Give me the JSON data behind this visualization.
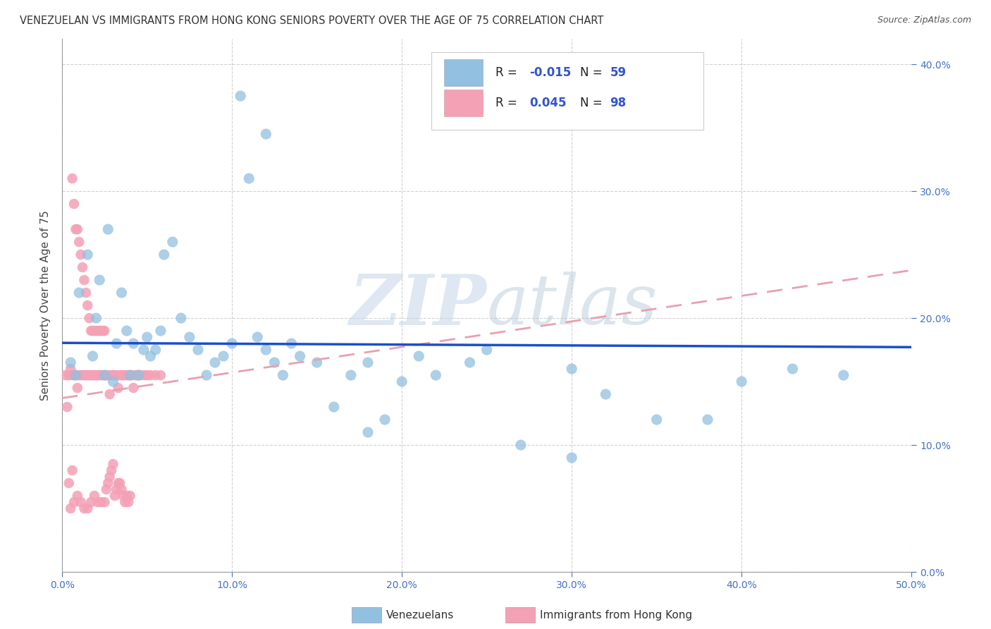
{
  "title": "VENEZUELAN VS IMMIGRANTS FROM HONG KONG SENIORS POVERTY OVER THE AGE OF 75 CORRELATION CHART",
  "source": "Source: ZipAtlas.com",
  "ylabel": "Seniors Poverty Over the Age of 75",
  "xlim": [
    0.0,
    0.5
  ],
  "ylim": [
    0.0,
    0.42
  ],
  "xticks": [
    0.0,
    0.1,
    0.2,
    0.3,
    0.4,
    0.5
  ],
  "yticks": [
    0.0,
    0.1,
    0.2,
    0.3,
    0.4
  ],
  "color_venezuelan": "#92c0e0",
  "color_hk": "#f4a0b5",
  "line_color_venezuelan": "#1a4fcc",
  "line_color_hk": "#e8a0b0",
  "R_venezuelan": -0.015,
  "N_venezuelan": 59,
  "R_hk": 0.045,
  "N_hk": 98,
  "legend_label_venezuelan": "Venezuelans",
  "legend_label_hk": "Immigrants from Hong Kong",
  "watermark_zip": "ZIP",
  "watermark_atlas": "atlas",
  "background_color": "#ffffff",
  "grid_color": "#cccccc",
  "venezuelan_x": [
    0.005,
    0.008,
    0.01,
    0.015,
    0.018,
    0.02,
    0.022,
    0.025,
    0.027,
    0.03,
    0.032,
    0.035,
    0.038,
    0.04,
    0.042,
    0.045,
    0.048,
    0.05,
    0.052,
    0.055,
    0.058,
    0.06,
    0.065,
    0.07,
    0.075,
    0.08,
    0.085,
    0.09,
    0.095,
    0.1,
    0.105,
    0.11,
    0.115,
    0.12,
    0.125,
    0.13,
    0.135,
    0.14,
    0.15,
    0.16,
    0.17,
    0.18,
    0.19,
    0.2,
    0.21,
    0.22,
    0.25,
    0.27,
    0.3,
    0.32,
    0.35,
    0.38,
    0.4,
    0.43,
    0.46,
    0.3,
    0.12,
    0.24,
    0.18
  ],
  "venezuelan_y": [
    0.165,
    0.155,
    0.22,
    0.25,
    0.17,
    0.2,
    0.23,
    0.155,
    0.27,
    0.15,
    0.18,
    0.22,
    0.19,
    0.155,
    0.18,
    0.155,
    0.175,
    0.185,
    0.17,
    0.175,
    0.19,
    0.25,
    0.26,
    0.2,
    0.185,
    0.175,
    0.155,
    0.165,
    0.17,
    0.18,
    0.375,
    0.31,
    0.185,
    0.175,
    0.165,
    0.155,
    0.18,
    0.17,
    0.165,
    0.13,
    0.155,
    0.11,
    0.12,
    0.15,
    0.17,
    0.155,
    0.175,
    0.1,
    0.16,
    0.14,
    0.12,
    0.12,
    0.15,
    0.16,
    0.155,
    0.09,
    0.345,
    0.165,
    0.165
  ],
  "hk_x": [
    0.002,
    0.003,
    0.004,
    0.005,
    0.006,
    0.007,
    0.008,
    0.009,
    0.01,
    0.011,
    0.012,
    0.013,
    0.014,
    0.015,
    0.016,
    0.017,
    0.018,
    0.019,
    0.02,
    0.021,
    0.022,
    0.023,
    0.024,
    0.025,
    0.026,
    0.027,
    0.028,
    0.029,
    0.03,
    0.031,
    0.032,
    0.033,
    0.034,
    0.035,
    0.036,
    0.037,
    0.038,
    0.039,
    0.04,
    0.041,
    0.042,
    0.043,
    0.044,
    0.045,
    0.046,
    0.048,
    0.05,
    0.052,
    0.055,
    0.058,
    0.006,
    0.007,
    0.008,
    0.009,
    0.01,
    0.011,
    0.012,
    0.013,
    0.014,
    0.015,
    0.016,
    0.017,
    0.018,
    0.019,
    0.02,
    0.021,
    0.022,
    0.023,
    0.024,
    0.025,
    0.026,
    0.027,
    0.028,
    0.029,
    0.03,
    0.031,
    0.032,
    0.033,
    0.034,
    0.035,
    0.036,
    0.037,
    0.038,
    0.039,
    0.04,
    0.005,
    0.007,
    0.009,
    0.011,
    0.013,
    0.015,
    0.017,
    0.019,
    0.021,
    0.023,
    0.025,
    0.004,
    0.006
  ],
  "hk_y": [
    0.155,
    0.13,
    0.155,
    0.16,
    0.155,
    0.155,
    0.155,
    0.145,
    0.155,
    0.155,
    0.155,
    0.155,
    0.155,
    0.155,
    0.155,
    0.155,
    0.155,
    0.155,
    0.155,
    0.155,
    0.155,
    0.155,
    0.155,
    0.155,
    0.155,
    0.155,
    0.14,
    0.155,
    0.155,
    0.155,
    0.155,
    0.145,
    0.155,
    0.155,
    0.155,
    0.155,
    0.155,
    0.155,
    0.155,
    0.155,
    0.145,
    0.155,
    0.155,
    0.155,
    0.155,
    0.155,
    0.155,
    0.155,
    0.155,
    0.155,
    0.31,
    0.29,
    0.27,
    0.27,
    0.26,
    0.25,
    0.24,
    0.23,
    0.22,
    0.21,
    0.2,
    0.19,
    0.19,
    0.19,
    0.19,
    0.19,
    0.19,
    0.19,
    0.19,
    0.19,
    0.065,
    0.07,
    0.075,
    0.08,
    0.085,
    0.06,
    0.065,
    0.07,
    0.07,
    0.065,
    0.06,
    0.055,
    0.06,
    0.055,
    0.06,
    0.05,
    0.055,
    0.06,
    0.055,
    0.05,
    0.05,
    0.055,
    0.06,
    0.055,
    0.055,
    0.055,
    0.07,
    0.08
  ]
}
